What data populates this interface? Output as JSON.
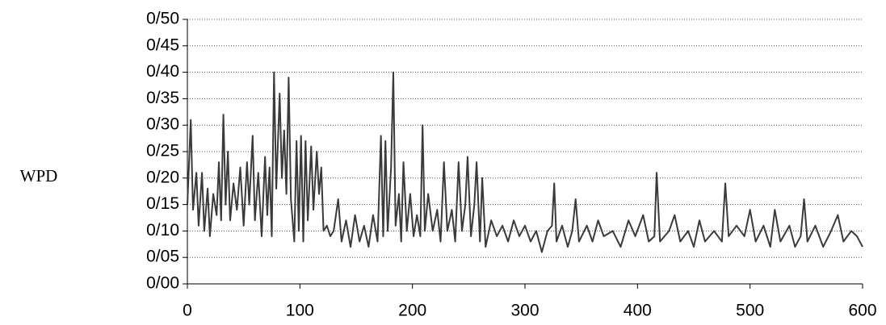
{
  "chart_data": {
    "type": "line",
    "y_label": "WPD",
    "xlim": [
      0,
      600
    ],
    "xticks": [
      0,
      100,
      200,
      300,
      400,
      500,
      600
    ],
    "ylim": [
      0,
      0.5
    ],
    "yticks": [
      {
        "value": 0,
        "label": "0/00"
      },
      {
        "value": 0.05,
        "label": "0/05"
      },
      {
        "value": 0.1,
        "label": "0/10"
      },
      {
        "value": 0.15,
        "label": "0/15"
      },
      {
        "value": 0.2,
        "label": "0/20"
      },
      {
        "value": 0.25,
        "label": "0/25"
      },
      {
        "value": 0.3,
        "label": "0/30"
      },
      {
        "value": 0.35,
        "label": "0/35"
      },
      {
        "value": 0.4,
        "label": "0/40"
      },
      {
        "value": 0.45,
        "label": "0/45"
      },
      {
        "value": 0.5,
        "label": "0/50"
      }
    ],
    "grid": true,
    "color": "#3a3a3a",
    "x": [
      0,
      3,
      5,
      8,
      10,
      13,
      15,
      18,
      20,
      23,
      26,
      28,
      30,
      32,
      34,
      36,
      38,
      41,
      44,
      47,
      50,
      53,
      55,
      58,
      60,
      63,
      66,
      69,
      71,
      73,
      75,
      77,
      79,
      82,
      84,
      86,
      88,
      90,
      92,
      95,
      97,
      99,
      101,
      103,
      105,
      107,
      110,
      112,
      115,
      117,
      119,
      121,
      124,
      127,
      130,
      134,
      137,
      141,
      145,
      149,
      153,
      157,
      161,
      165,
      169,
      172,
      174,
      176,
      178,
      181,
      183,
      185,
      188,
      190,
      192,
      195,
      198,
      201,
      204,
      207,
      209,
      211,
      214,
      218,
      222,
      225,
      228,
      231,
      235,
      238,
      241,
      244,
      247,
      249,
      252,
      255,
      257,
      260,
      262,
      265,
      270,
      275,
      280,
      285,
      290,
      295,
      300,
      305,
      310,
      315,
      320,
      324,
      326,
      328,
      333,
      338,
      342,
      345,
      348,
      355,
      360,
      365,
      370,
      378,
      385,
      392,
      398,
      405,
      410,
      415,
      417,
      420,
      428,
      433,
      438,
      445,
      450,
      455,
      460,
      468,
      475,
      478,
      481,
      488,
      495,
      500,
      505,
      512,
      518,
      522,
      527,
      535,
      540,
      545,
      548,
      551,
      558,
      565,
      572,
      578,
      583,
      590,
      595,
      600
    ],
    "values": [
      0.15,
      0.31,
      0.14,
      0.21,
      0.11,
      0.21,
      0.1,
      0.18,
      0.09,
      0.17,
      0.13,
      0.23,
      0.12,
      0.32,
      0.15,
      0.25,
      0.12,
      0.19,
      0.14,
      0.22,
      0.11,
      0.23,
      0.15,
      0.28,
      0.12,
      0.21,
      0.09,
      0.24,
      0.13,
      0.22,
      0.09,
      0.4,
      0.18,
      0.36,
      0.2,
      0.29,
      0.17,
      0.39,
      0.16,
      0.08,
      0.27,
      0.1,
      0.28,
      0.08,
      0.27,
      0.12,
      0.26,
      0.14,
      0.25,
      0.17,
      0.22,
      0.1,
      0.11,
      0.09,
      0.1,
      0.16,
      0.08,
      0.12,
      0.07,
      0.13,
      0.08,
      0.11,
      0.07,
      0.13,
      0.08,
      0.28,
      0.09,
      0.27,
      0.1,
      0.22,
      0.4,
      0.11,
      0.17,
      0.08,
      0.23,
      0.1,
      0.17,
      0.09,
      0.13,
      0.09,
      0.3,
      0.1,
      0.17,
      0.1,
      0.14,
      0.08,
      0.23,
      0.1,
      0.14,
      0.08,
      0.23,
      0.1,
      0.15,
      0.24,
      0.09,
      0.15,
      0.23,
      0.08,
      0.2,
      0.07,
      0.12,
      0.09,
      0.11,
      0.08,
      0.12,
      0.09,
      0.11,
      0.08,
      0.1,
      0.06,
      0.1,
      0.11,
      0.19,
      0.08,
      0.11,
      0.07,
      0.1,
      0.16,
      0.08,
      0.11,
      0.08,
      0.12,
      0.09,
      0.1,
      0.07,
      0.12,
      0.09,
      0.13,
      0.08,
      0.09,
      0.21,
      0.08,
      0.1,
      0.13,
      0.08,
      0.1,
      0.07,
      0.12,
      0.08,
      0.1,
      0.08,
      0.19,
      0.09,
      0.11,
      0.09,
      0.14,
      0.08,
      0.11,
      0.07,
      0.14,
      0.08,
      0.11,
      0.07,
      0.09,
      0.16,
      0.08,
      0.11,
      0.07,
      0.1,
      0.13,
      0.08,
      0.1,
      0.09,
      0.07
    ]
  }
}
